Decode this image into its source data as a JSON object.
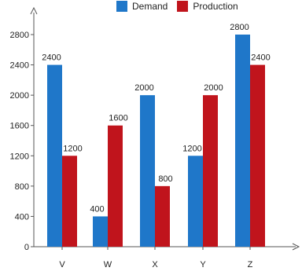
{
  "chart_data": {
    "type": "bar",
    "categories": [
      "V",
      "W",
      "X",
      "Y",
      "Z"
    ],
    "series": [
      {
        "name": "Demand",
        "values": [
          2400,
          400,
          2000,
          1200,
          2800
        ],
        "color": "#1f77c9"
      },
      {
        "name": "Production",
        "values": [
          1200,
          1600,
          800,
          2000,
          2400
        ],
        "color": "#c0141c"
      }
    ],
    "y_ticks": [
      0,
      400,
      800,
      1200,
      1600,
      2000,
      2400,
      2800
    ],
    "ylim": [
      0,
      3200
    ],
    "title": "",
    "xlabel": "",
    "ylabel": "",
    "legend_position": "top",
    "grid": false
  }
}
